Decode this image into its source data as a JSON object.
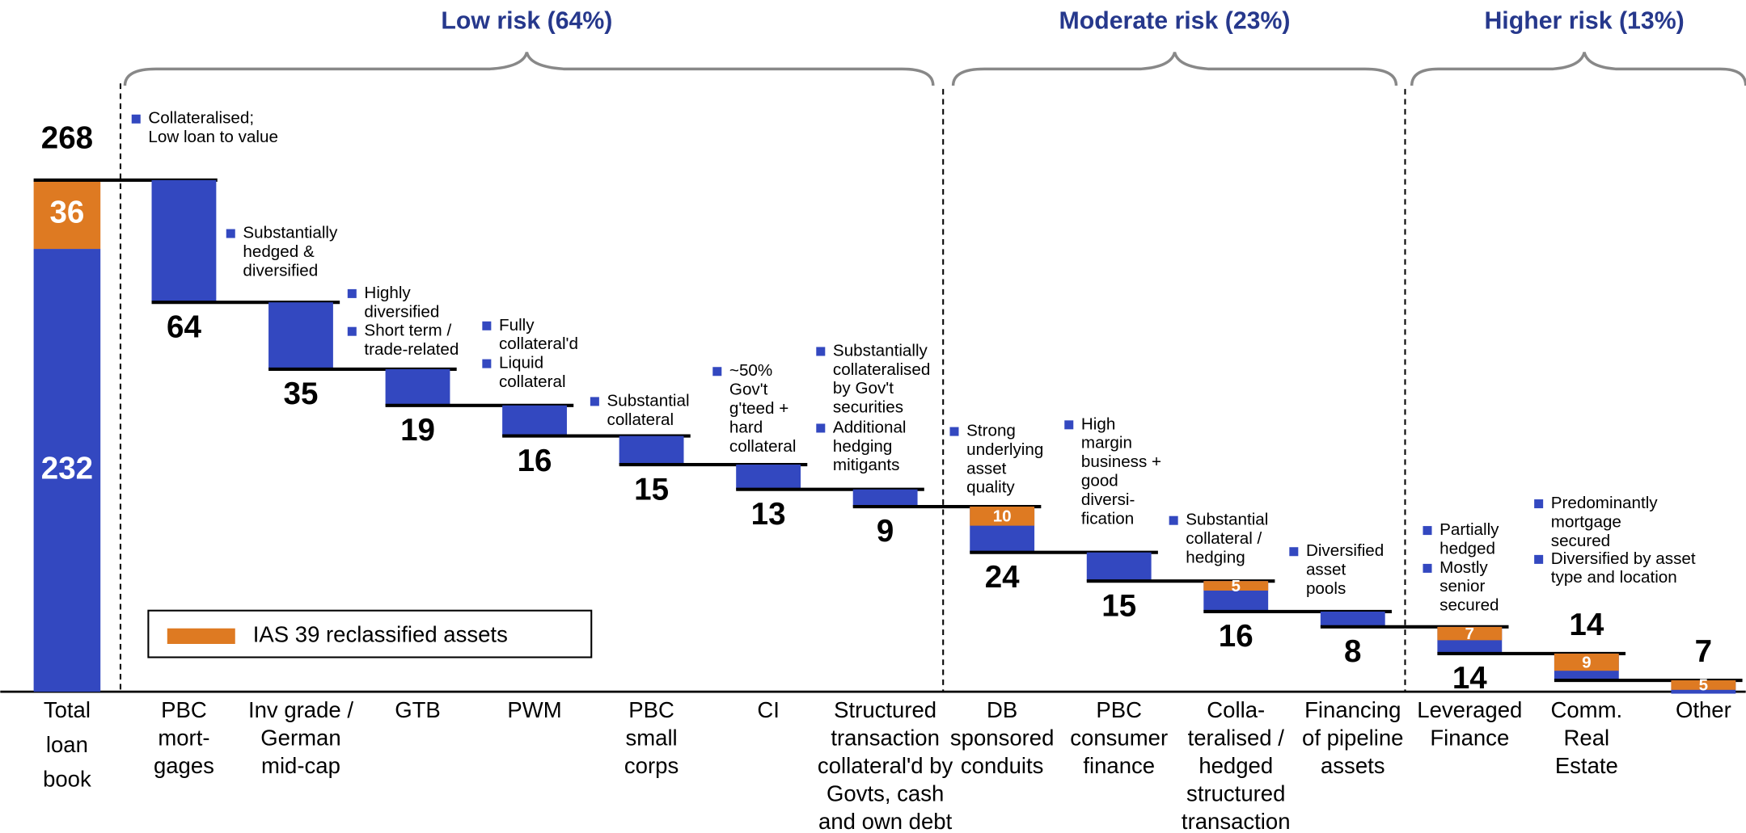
{
  "chart_data": {
    "type": "waterfall",
    "groups": [
      "Low risk (64%)",
      "Moderate risk (23%)",
      "Higher risk (13%)"
    ],
    "total": {
      "label": [
        "Total",
        "loan",
        "book"
      ],
      "value": 268,
      "base": 232,
      "reclassified": 36
    },
    "categories": [
      [
        "PBC",
        "mort-",
        "gages"
      ],
      [
        "Inv grade /",
        "German",
        "mid-cap"
      ],
      [
        "GTB"
      ],
      [
        "PWM"
      ],
      [
        "PBC",
        "small",
        "corps"
      ],
      [
        "CI"
      ],
      [
        "Structured",
        "transaction",
        "collateral'd by",
        "Govts, cash",
        "and own debt"
      ],
      [
        "DB",
        "sponsored",
        "conduits"
      ],
      [
        "PBC",
        "consumer",
        "finance"
      ],
      [
        "Colla-",
        "teralised /",
        "hedged",
        "structured",
        "transaction"
      ],
      [
        "Financing",
        "of pipeline",
        "assets"
      ],
      [
        "Leveraged",
        "Finance"
      ],
      [
        "Comm.",
        "Real",
        "Estate"
      ],
      [
        "Other"
      ]
    ],
    "values": [
      64,
      35,
      19,
      16,
      15,
      13,
      9,
      24,
      15,
      16,
      8,
      14,
      14,
      7
    ],
    "reclassified": [
      null,
      null,
      null,
      null,
      null,
      null,
      null,
      10,
      null,
      5,
      null,
      7,
      9,
      5
    ],
    "colors": {
      "base": "#3348c0",
      "reclassified": "#de7a22"
    },
    "legend": "IAS 39 reclassified assets",
    "annotations": [
      [
        "Collateralised;",
        "Low loan to value"
      ],
      [
        "Substantially",
        "hedged &",
        "diversified"
      ],
      [
        "Highly",
        "diversified"
      ],
      [
        "Short term /",
        "trade-related"
      ],
      [
        "Fully",
        "collateral'd"
      ],
      [
        "Liquid",
        "collateral"
      ],
      [
        "Substantial",
        "collateral"
      ],
      [
        "~50%",
        "Gov't",
        "g'teed +",
        "hard",
        "collateral"
      ],
      [
        "Substantially",
        "collateralised",
        "by Gov't",
        "securities"
      ],
      [
        "Additional",
        "hedging",
        "mitigants"
      ],
      [
        "Strong",
        "underlying",
        "asset",
        "quality"
      ],
      [
        "High",
        "margin",
        "business +",
        "good",
        "diversi-",
        "fication"
      ],
      [
        "Substantial",
        "collateral /",
        "hedging"
      ],
      [
        "Diversified",
        "asset",
        "pools"
      ],
      [
        "Partially",
        "hedged"
      ],
      [
        "Mostly",
        "senior",
        "secured"
      ],
      [
        "Predominantly",
        "mortgage",
        "secured"
      ],
      [
        "Diversified by asset",
        "type and location"
      ]
    ]
  }
}
